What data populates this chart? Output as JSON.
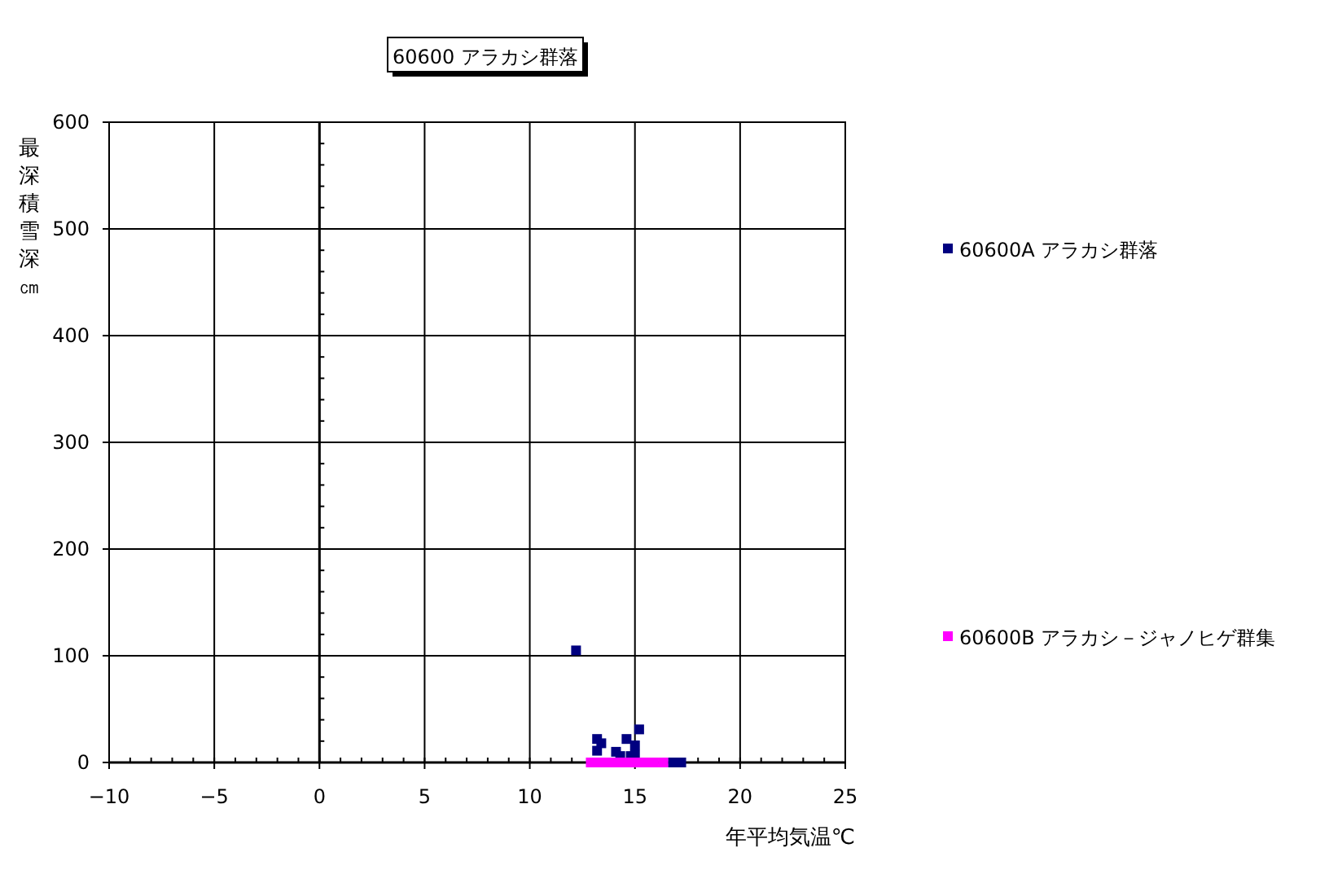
{
  "chart_data": {
    "type": "scatter",
    "title": "60600 アラカシ群落",
    "xlabel": "年平均気温℃",
    "ylabel": "最深積雪深㎝",
    "xlim": [
      -10,
      25
    ],
    "xticks": [
      -10,
      -5,
      0,
      5,
      10,
      15,
      20,
      25
    ],
    "ylim": [
      0,
      600
    ],
    "yticks": [
      0,
      100,
      200,
      300,
      400,
      500,
      600
    ],
    "grid": true,
    "legend": "right",
    "marker": "square",
    "series": [
      {
        "name": "60600A アラカシ群落",
        "color": "#000080",
        "x": [
          12.2,
          13.2,
          13.4,
          13.2,
          14.1,
          14.3,
          14.6,
          15.2,
          15.0,
          15.0,
          14.8,
          16.8,
          17.2
        ],
        "values": [
          105,
          22,
          18,
          11,
          10,
          6,
          22,
          31,
          16,
          7,
          6,
          0,
          0
        ]
      },
      {
        "name": "60600B アラカシ－ジャノヒゲ群集",
        "color": "#ff00ff",
        "x": [
          12.9,
          13.2,
          13.5,
          13.8,
          14.1,
          14.4,
          14.7,
          15.0,
          15.3,
          15.6,
          15.9,
          16.35
        ],
        "values": [
          0,
          0,
          0,
          0,
          0,
          0,
          0,
          0,
          0,
          0,
          0,
          0
        ]
      }
    ]
  }
}
